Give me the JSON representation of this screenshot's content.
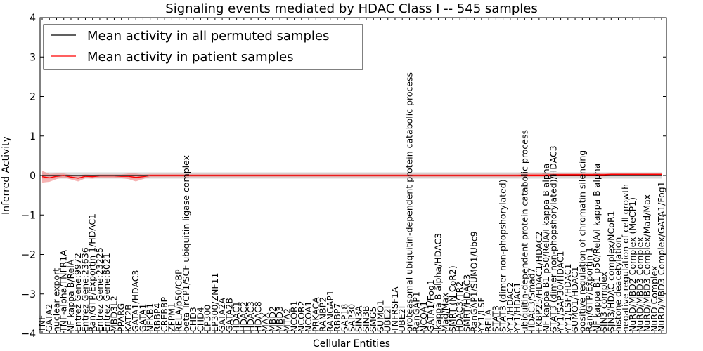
{
  "chart_data": {
    "type": "line",
    "title": "Signaling events mediated by HDAC Class I -- 545 samples",
    "xlabel": "Cellular Entities",
    "ylabel": "Inferred Activity",
    "ylim": [
      -4,
      4
    ],
    "yticks": [
      -4,
      -3,
      -2,
      -1,
      0,
      1,
      2,
      3,
      4
    ],
    "ytick_labels": [
      "−4",
      "−3",
      "−2",
      "−1",
      "0",
      "1",
      "2",
      "3",
      "4"
    ],
    "legend": {
      "placement": "top-left",
      "entries": [
        {
          "label": "Mean activity in all permuted samples",
          "color": "#000000"
        },
        {
          "label": "Mean activity in patient samples",
          "color": "#ff0000"
        }
      ]
    },
    "colors": {
      "permuted_line": "#000000",
      "patient_line": "#ff0000",
      "patient_band": "#f08080",
      "permuted_band": "#bbbbbb"
    },
    "categories": [
      "TNF",
      "GATA2",
      "nuclear export",
      "TNF-alpha/TNFR1A",
      "NF kappa B/RelA",
      "Entrez Gene:9972",
      "Entrez Gene:23636",
      "Ran/GTP/Exportin 1/HDAC1",
      "Entrez Gene:23225",
      "Entrez Gene:8021",
      "MBD3L2",
      "PPARG",
      "KAT2B",
      "GATA1/HDAC3",
      "GATA1",
      "NFKB1",
      "RBBP4",
      "CREBBP",
      "ZFPM1",
      "RELA/p50/CBP",
      "beta TrCP1/SCF ubiquitin ligase complex",
      "CHD3",
      "CHD4",
      "EP300",
      "EP300/ZNF11",
      "GATA2A",
      "GATA2B",
      "HDAC1",
      "HDAC2",
      "HDAC3",
      "HDAC8",
      "MAX",
      "MBD2",
      "MBD3",
      "MTA2",
      "NCOR1",
      "NCOR2",
      "NCOA1",
      "PRKACA",
      "RANBP2",
      "RANGAP1",
      "RBBP7",
      "SAP18",
      "SAP30",
      "SIN3A",
      "SIN3B",
      "SMG5",
      "SUMO1",
      "UBE2I",
      "TNFRSF1A",
      "UBE2I",
      "proteasomal ubiquitin-dependent protein catabolic process",
      "RanGAP1",
      "NCOA1",
      "GATA1/Fog1",
      "Ikappa B alpha/HDAC3",
      "Mad/Max",
      "SMRT (N-CoR2)",
      "HDAC3/TR2",
      "SMRT/HDAC3",
      "RanGAP1/SUMO1/Ubc9",
      "YY1/LSF",
      "RELA",
      "STAT3",
      "STAT3 (dimer non-phopshorylated)",
      "YY1/HDAC2",
      "YY1/HDAC1",
      "ubiquitin-dependent protein catabolic process",
      "HDAC3/Smad7",
      "FKBP25/HDAC1/HDAC2",
      "NF kappa B1 p50/RelA/I kappa B alpha",
      "STAT3 (dimer non-phopshorylated)/HDAC3",
      "YY1/SAP30/HDAC1",
      "YY1/LSF/HDAC1",
      "SUMO1/HDAC1",
      "positive regulation of chromatin silencing",
      "Ran/GTP/Exportin 1",
      "NF kappa B1 p50/RelA/I kappa B alpha",
      "SIN3 complex",
      "SIN3/HDAC complex/NCoR1",
      "histone deacetylation",
      "negative regulation of cell growth",
      "NuRD/MBD2 Complex (MeCP1)",
      "NuRD/MBD3 Complex",
      "NuRD/MBD3 Complex/Mad/Max",
      "NuRD Complex",
      "NuRD/MBD3 Complex/GATA1/Fog1"
    ],
    "series": [
      {
        "name": "Mean activity in patient samples",
        "values": [
          -0.03,
          -0.06,
          -0.02,
          0.0,
          -0.04,
          -0.07,
          -0.02,
          -0.03,
          -0.01,
          -0.01,
          -0.01,
          -0.02,
          -0.02,
          -0.05,
          -0.03,
          0.0,
          0.0,
          0.0,
          0.0,
          0.0,
          0.0,
          0.0,
          0.0,
          0.0,
          0.0,
          0.0,
          0.0,
          0.0,
          0.0,
          0.0,
          0.0,
          0.0,
          0.0,
          0.0,
          0.0,
          0.0,
          0.0,
          0.0,
          0.0,
          0.0,
          0.0,
          0.0,
          0.0,
          0.0,
          0.0,
          0.0,
          0.0,
          0.0,
          0.0,
          0.0,
          0.0,
          0.0,
          0.0,
          0.0,
          0.0,
          0.0,
          0.0,
          0.0,
          0.0,
          0.0,
          0.0,
          0.0,
          0.0,
          0.0,
          0.0,
          0.0,
          0.0,
          0.01,
          0.01,
          0.01,
          0.01,
          0.02,
          0.02,
          0.02,
          0.02,
          0.02,
          0.02,
          0.02,
          0.02,
          0.03,
          0.03,
          0.03,
          0.03,
          0.03,
          0.03,
          0.03,
          0.03
        ]
      },
      {
        "name": "Mean activity in all permuted samples",
        "values": [
          0.0,
          0.0,
          0.0,
          0.0,
          0.0,
          0.0,
          0.0,
          0.0,
          0.0,
          0.0,
          0.0,
          0.0,
          0.0,
          0.0,
          0.0,
          0.0,
          0.0,
          0.0,
          0.0,
          0.0,
          0.0,
          0.0,
          0.0,
          0.0,
          0.0,
          0.0,
          0.0,
          0.0,
          0.0,
          0.0,
          0.0,
          0.0,
          0.0,
          0.0,
          0.0,
          0.0,
          0.0,
          0.0,
          0.0,
          0.0,
          0.0,
          0.0,
          0.0,
          0.0,
          0.0,
          0.0,
          0.0,
          0.0,
          0.0,
          0.0,
          0.0,
          0.0,
          0.0,
          0.0,
          0.0,
          0.0,
          0.0,
          0.0,
          0.0,
          0.0,
          0.0,
          0.0,
          0.0,
          0.0,
          0.0,
          0.0,
          0.0,
          0.0,
          0.0,
          0.0,
          0.0,
          0.0,
          0.0,
          0.0,
          0.0,
          0.0,
          0.0,
          0.0,
          0.0,
          0.0,
          0.0,
          0.0,
          0.0,
          0.0,
          0.0,
          0.0,
          0.0
        ]
      }
    ],
    "patient_band_halfwidth": [
      0.15,
      0.1,
      0.07,
      0.05,
      0.06,
      0.08,
      0.05,
      0.05,
      0.04,
      0.04,
      0.04,
      0.05,
      0.07,
      0.1,
      0.06,
      0.04,
      0.04,
      0.04,
      0.04,
      0.04,
      0.04,
      0.04,
      0.04,
      0.04,
      0.04,
      0.04,
      0.04,
      0.04,
      0.04,
      0.04,
      0.04,
      0.04,
      0.04,
      0.04,
      0.04,
      0.04,
      0.04,
      0.04,
      0.04,
      0.04,
      0.04,
      0.04,
      0.04,
      0.04,
      0.04,
      0.04,
      0.04,
      0.04,
      0.04,
      0.04,
      0.04,
      0.04,
      0.04,
      0.04,
      0.04,
      0.04,
      0.04,
      0.04,
      0.04,
      0.04,
      0.04,
      0.04,
      0.04,
      0.04,
      0.04,
      0.04,
      0.04,
      0.04,
      0.04,
      0.04,
      0.04,
      0.04,
      0.04,
      0.04,
      0.04,
      0.04,
      0.04,
      0.04,
      0.04,
      0.04,
      0.04,
      0.04,
      0.04,
      0.04,
      0.04,
      0.04,
      0.04
    ],
    "permuted_band_halfwidth": 0.08
  }
}
